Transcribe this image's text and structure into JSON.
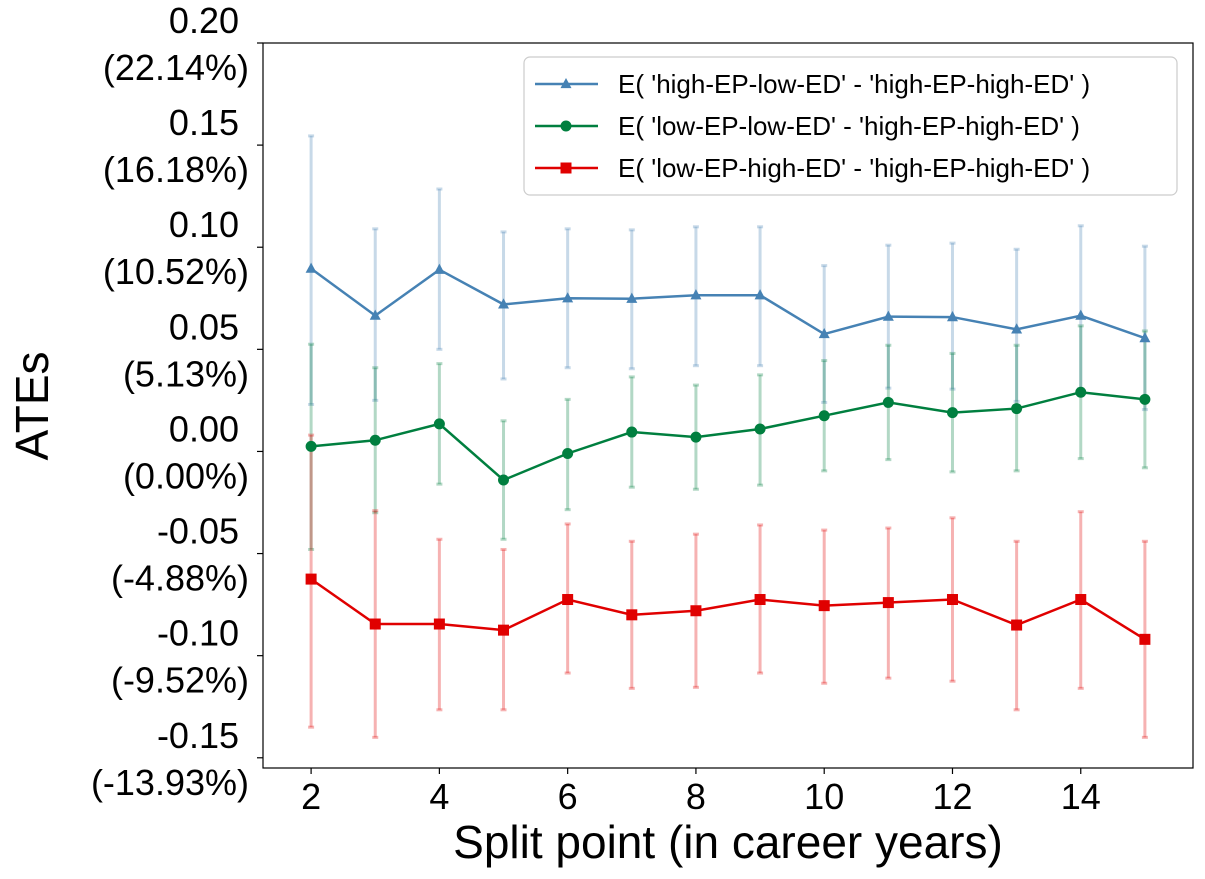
{
  "chart_data": {
    "type": "line",
    "xlabel": "Split point (in career years)",
    "ylabel": "ATEs",
    "xlim": [
      1.25,
      15.75
    ],
    "ylim": [
      -0.155,
      0.2
    ],
    "x_ticks": [
      2,
      4,
      6,
      8,
      10,
      12,
      14
    ],
    "y_ticks": [
      {
        "value": 0.2,
        "label": "0.20",
        "pct": "(22.14%)"
      },
      {
        "value": 0.15,
        "label": "0.15",
        "pct": "(16.18%)"
      },
      {
        "value": 0.1,
        "label": "0.10",
        "pct": "(10.52%)"
      },
      {
        "value": 0.05,
        "label": "0.05",
        "pct": "(5.13%)"
      },
      {
        "value": 0.0,
        "label": "0.00",
        "pct": "(0.00%)"
      },
      {
        "value": -0.05,
        "label": "-0.05",
        "pct": "(-4.88%)"
      },
      {
        "value": -0.1,
        "label": "-0.10",
        "pct": "(-9.52%)"
      },
      {
        "value": -0.15,
        "label": "-0.15",
        "pct": "(-13.93%)"
      }
    ],
    "grid": false,
    "legend_position": "top-right",
    "x": [
      2,
      3,
      4,
      5,
      6,
      7,
      8,
      9,
      10,
      11,
      12,
      13,
      14,
      15
    ],
    "series": [
      {
        "name": "E( 'high-EP-low-ED' - 'high-EP-high-ED' )",
        "color": "#4682b4",
        "marker": "triangle",
        "values": [
          0.0895,
          0.0665,
          0.089,
          0.072,
          0.075,
          0.0748,
          0.0765,
          0.0765,
          0.0575,
          0.066,
          0.0658,
          0.0598,
          0.0665,
          0.0555
        ],
        "lower": [
          0.023,
          0.025,
          0.05,
          0.0355,
          0.041,
          0.0405,
          0.042,
          0.042,
          0.024,
          0.031,
          0.0305,
          0.0245,
          0.0305,
          0.0205
        ],
        "upper": [
          0.1545,
          0.109,
          0.1285,
          0.1075,
          0.109,
          0.1085,
          0.11,
          0.11,
          0.091,
          0.101,
          0.102,
          0.099,
          0.1105,
          0.1005
        ]
      },
      {
        "name": "E( 'low-EP-low-ED' - 'high-EP-high-ED' )",
        "color": "#007f3f",
        "marker": "circle",
        "values": [
          0.0025,
          0.0055,
          0.0135,
          -0.014,
          -0.001,
          0.0095,
          0.007,
          0.011,
          0.0175,
          0.024,
          0.019,
          0.021,
          0.029,
          0.0255
        ],
        "lower": [
          -0.048,
          -0.03,
          -0.016,
          -0.043,
          -0.0285,
          -0.0175,
          -0.0185,
          -0.0165,
          -0.0095,
          -0.004,
          -0.01,
          -0.0095,
          -0.0035,
          -0.008
        ],
        "upper": [
          0.0525,
          0.041,
          0.043,
          0.015,
          0.0255,
          0.0365,
          0.0325,
          0.0375,
          0.0445,
          0.052,
          0.048,
          0.052,
          0.0615,
          0.059
        ]
      },
      {
        "name": "E( 'low-EP-high-ED' - 'high-EP-high-ED' )",
        "color": "#e00000",
        "marker": "square",
        "values": [
          -0.0625,
          -0.0845,
          -0.0845,
          -0.0875,
          -0.0725,
          -0.08,
          -0.078,
          -0.0725,
          -0.0755,
          -0.074,
          -0.0725,
          -0.085,
          -0.0725,
          -0.092
        ],
        "lower": [
          -0.135,
          -0.14,
          -0.1265,
          -0.1265,
          -0.1085,
          -0.116,
          -0.1155,
          -0.1085,
          -0.1135,
          -0.111,
          -0.1125,
          -0.1265,
          -0.116,
          -0.14
        ],
        "upper": [
          0.008,
          -0.029,
          -0.043,
          -0.048,
          -0.0355,
          -0.044,
          -0.0405,
          -0.036,
          -0.0385,
          -0.0375,
          -0.0325,
          -0.044,
          -0.0295,
          -0.044
        ]
      }
    ]
  }
}
